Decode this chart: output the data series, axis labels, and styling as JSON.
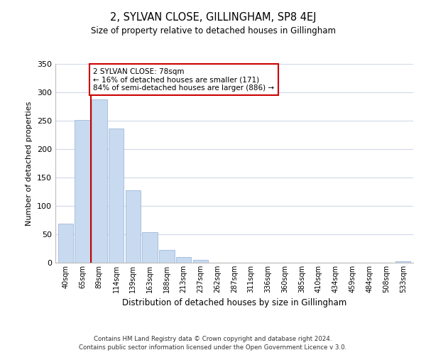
{
  "title": "2, SYLVAN CLOSE, GILLINGHAM, SP8 4EJ",
  "subtitle": "Size of property relative to detached houses in Gillingham",
  "xlabel": "Distribution of detached houses by size in Gillingham",
  "ylabel": "Number of detached properties",
  "bar_labels": [
    "40sqm",
    "65sqm",
    "89sqm",
    "114sqm",
    "139sqm",
    "163sqm",
    "188sqm",
    "213sqm",
    "237sqm",
    "262sqm",
    "287sqm",
    "311sqm",
    "336sqm",
    "360sqm",
    "385sqm",
    "410sqm",
    "434sqm",
    "459sqm",
    "484sqm",
    "508sqm",
    "533sqm"
  ],
  "bar_values": [
    69,
    251,
    288,
    236,
    128,
    54,
    22,
    10,
    5,
    0,
    0,
    0,
    0,
    0,
    0,
    0,
    0,
    0,
    0,
    0,
    2
  ],
  "bar_color": "#c8daf0",
  "bar_edge_color": "#a0b8d8",
  "property_line_x": 1.5,
  "property_line_color": "#cc0000",
  "ylim": [
    0,
    350
  ],
  "yticks": [
    0,
    50,
    100,
    150,
    200,
    250,
    300,
    350
  ],
  "annotation_text": "2 SYLVAN CLOSE: 78sqm\n← 16% of detached houses are smaller (171)\n84% of semi-detached houses are larger (886) →",
  "annotation_box_color": "#ffffff",
  "annotation_box_edge": "#cc0000",
  "footer_line1": "Contains HM Land Registry data © Crown copyright and database right 2024.",
  "footer_line2": "Contains public sector information licensed under the Open Government Licence v 3.0.",
  "background_color": "#ffffff",
  "grid_color": "#d0d8e8"
}
